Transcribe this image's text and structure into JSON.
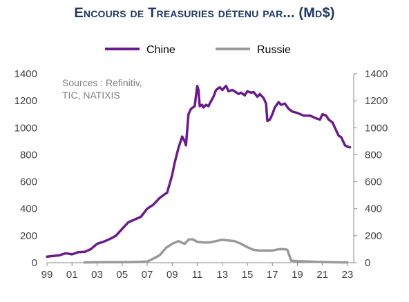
{
  "title": "Encours de Treasuries détenu par... (Md$)",
  "source_lines": [
    "Sources : Refinitiv,",
    "TIC, NATIXIS"
  ],
  "chart_data": {
    "type": "line",
    "title": "Encours de Treasuries détenu par... (Md$)",
    "xlabel": "",
    "ylabel": "",
    "xlim": [
      1999,
      2023.5
    ],
    "ylim": [
      0,
      1400
    ],
    "y2lim": [
      0,
      1400
    ],
    "grid": false,
    "legend_position": "top-center",
    "x_tick_labels": [
      "99",
      "01",
      "03",
      "05",
      "07",
      "09",
      "11",
      "13",
      "15",
      "17",
      "19",
      "21",
      "23"
    ],
    "x_tick_values": [
      1999,
      2001,
      2003,
      2005,
      2007,
      2009,
      2011,
      2013,
      2015,
      2017,
      2019,
      2021,
      2023
    ],
    "y_tick_labels": [
      "0",
      "200",
      "400",
      "600",
      "800",
      "1000",
      "1200",
      "1400"
    ],
    "y_tick_values": [
      0,
      200,
      400,
      600,
      800,
      1000,
      1200,
      1400
    ],
    "series": [
      {
        "name": "Chine",
        "color": "#6a1b8a",
        "x": [
          1999,
          1999.5,
          2000,
          2000.5,
          2001,
          2001.5,
          2002,
          2002.5,
          2003,
          2003.5,
          2004,
          2004.5,
          2005,
          2005.5,
          2006,
          2006.5,
          2007,
          2007.5,
          2008,
          2008.3,
          2008.6,
          2009,
          2009.2,
          2009.5,
          2009.8,
          2010,
          2010.1,
          2010.3,
          2010.5,
          2010.8,
          2011,
          2011.1,
          2011.2,
          2011.4,
          2011.5,
          2011.7,
          2011.9,
          2012,
          2012.3,
          2012.5,
          2012.8,
          2013,
          2013.3,
          2013.5,
          2013.8,
          2014,
          2014.3,
          2014.5,
          2014.8,
          2015,
          2015.3,
          2015.5,
          2015.8,
          2016,
          2016.3,
          2016.5,
          2016.6,
          2016.8,
          2017,
          2017.2,
          2017.5,
          2017.7,
          2018,
          2018.3,
          2018.6,
          2019,
          2019.5,
          2020,
          2020.5,
          2020.8,
          2021,
          2021.3,
          2021.5,
          2021.8,
          2022,
          2022.3,
          2022.5,
          2022.8,
          2023,
          2023.2
        ],
        "y": [
          45,
          50,
          55,
          70,
          62,
          78,
          80,
          100,
          140,
          155,
          175,
          200,
          250,
          300,
          320,
          340,
          400,
          430,
          480,
          500,
          520,
          650,
          740,
          850,
          935,
          900,
          870,
          1100,
          1140,
          1160,
          1310,
          1280,
          1160,
          1170,
          1150,
          1170,
          1160,
          1180,
          1230,
          1280,
          1300,
          1280,
          1310,
          1270,
          1280,
          1270,
          1250,
          1260,
          1240,
          1270,
          1260,
          1265,
          1230,
          1250,
          1220,
          1180,
          1050,
          1060,
          1100,
          1150,
          1190,
          1170,
          1180,
          1140,
          1120,
          1110,
          1090,
          1090,
          1070,
          1060,
          1100,
          1090,
          1060,
          1040,
          1000,
          940,
          930,
          870,
          860,
          855
        ]
      },
      {
        "name": "Russie",
        "color": "#999999",
        "x": [
          2002,
          2003,
          2004,
          2005,
          2006,
          2007,
          2007.5,
          2008,
          2008.5,
          2009,
          2009.5,
          2010,
          2010.3,
          2010.6,
          2011,
          2011.5,
          2012,
          2012.5,
          2013,
          2013.5,
          2014,
          2014.5,
          2015,
          2015.5,
          2016,
          2016.5,
          2017,
          2017.5,
          2018,
          2018.2,
          2018.5,
          2019,
          2020,
          2021,
          2022,
          2023
        ],
        "y": [
          2,
          3,
          4,
          4,
          5,
          8,
          30,
          55,
          110,
          140,
          160,
          140,
          170,
          175,
          155,
          150,
          150,
          160,
          170,
          165,
          160,
          140,
          115,
          95,
          90,
          90,
          90,
          100,
          100,
          95,
          15,
          12,
          8,
          5,
          3,
          2
        ]
      }
    ]
  }
}
